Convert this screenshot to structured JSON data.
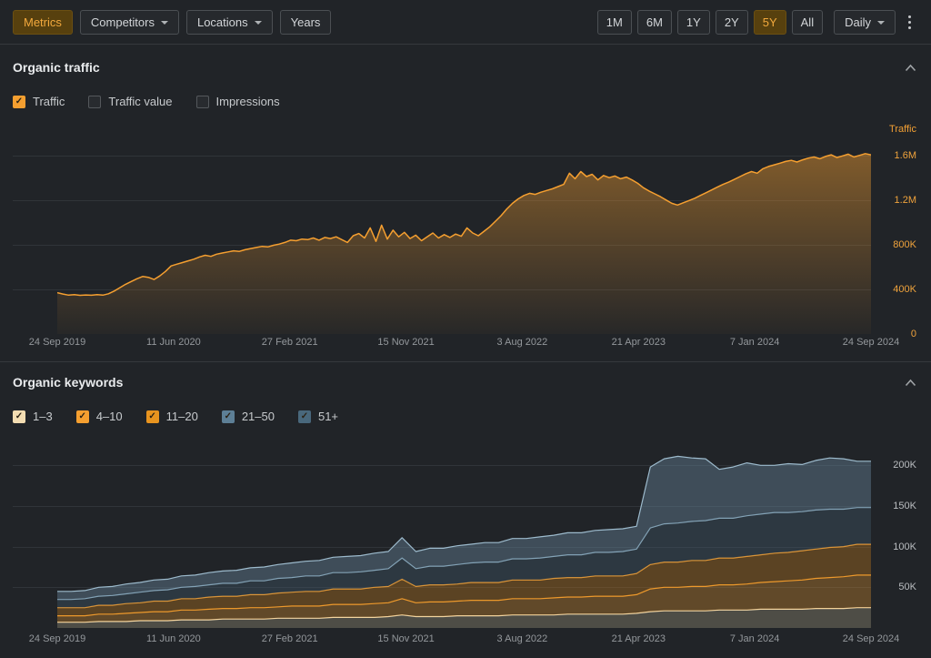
{
  "toolbar": {
    "metrics_label": "Metrics",
    "competitors_label": "Competitors",
    "locations_label": "Locations",
    "years_label": "Years",
    "granularity": "Daily",
    "ranges": [
      {
        "label": "1M",
        "active": false
      },
      {
        "label": "6M",
        "active": false
      },
      {
        "label": "1Y",
        "active": false
      },
      {
        "label": "2Y",
        "active": false
      },
      {
        "label": "5Y",
        "active": true
      },
      {
        "label": "All",
        "active": false
      }
    ],
    "accent_color": "#f3a93d"
  },
  "traffic_section": {
    "title": "Organic traffic",
    "ylabel": "Traffic",
    "legend": [
      {
        "label": "Traffic",
        "checked": true,
        "color": "#f59f30"
      },
      {
        "label": "Traffic value",
        "checked": false,
        "color": ""
      },
      {
        "label": "Impressions",
        "checked": false,
        "color": ""
      }
    ]
  },
  "keywords_section": {
    "title": "Organic keywords",
    "legend": [
      {
        "label": "1–3",
        "checked": true,
        "color": "#f3ddb2"
      },
      {
        "label": "4–10",
        "checked": true,
        "color": "#f59f30"
      },
      {
        "label": "11–20",
        "checked": true,
        "color": "#e8941f"
      },
      {
        "label": "21–50",
        "checked": true,
        "color": "#5d7f96"
      },
      {
        "label": "51+",
        "checked": true,
        "color": "#49687c"
      }
    ]
  },
  "chart_data": [
    {
      "type": "line",
      "title": "Organic traffic",
      "ylabel": "Traffic",
      "unit": "thousands",
      "grid": true,
      "legend_position": "above",
      "x_ticks": [
        "24 Sep 2019",
        "11 Jun 2020",
        "27 Feb 2021",
        "15 Nov 2021",
        "3 Aug 2022",
        "21 Apr 2023",
        "7 Jan 2024",
        "24 Sep 2024"
      ],
      "y_ticks": [
        {
          "label": "1.6M",
          "value": 1600
        },
        {
          "label": "1.2M",
          "value": 1200
        },
        {
          "label": "800K",
          "value": 800
        },
        {
          "label": "400K",
          "value": 400
        },
        {
          "label": "0",
          "value": 0
        }
      ],
      "ylim": [
        0,
        1850
      ],
      "series": [
        {
          "name": "Traffic",
          "color": "#f59f30",
          "fill": true,
          "values": [
            370,
            358,
            348,
            352,
            346,
            350,
            347,
            352,
            348,
            360,
            385,
            415,
            445,
            470,
            495,
            515,
            508,
            488,
            520,
            560,
            610,
            625,
            640,
            655,
            670,
            690,
            705,
            695,
            715,
            725,
            735,
            745,
            740,
            755,
            765,
            775,
            785,
            780,
            795,
            805,
            820,
            840,
            835,
            850,
            845,
            860,
            840,
            865,
            855,
            870,
            845,
            820,
            880,
            900,
            860,
            950,
            830,
            975,
            850,
            930,
            870,
            910,
            855,
            885,
            835,
            870,
            905,
            860,
            890,
            865,
            895,
            875,
            950,
            905,
            880,
            920,
            960,
            1010,
            1060,
            1120,
            1170,
            1210,
            1240,
            1260,
            1250,
            1270,
            1285,
            1300,
            1320,
            1340,
            1440,
            1390,
            1455,
            1410,
            1430,
            1380,
            1420,
            1400,
            1415,
            1390,
            1405,
            1380,
            1350,
            1310,
            1280,
            1255,
            1230,
            1200,
            1170,
            1155,
            1175,
            1195,
            1215,
            1240,
            1265,
            1290,
            1315,
            1340,
            1360,
            1385,
            1410,
            1435,
            1455,
            1440,
            1480,
            1500,
            1515,
            1530,
            1545,
            1555,
            1540,
            1560,
            1575,
            1585,
            1570,
            1590,
            1605,
            1580,
            1595,
            1610,
            1585,
            1600,
            1615,
            1605
          ]
        }
      ]
    },
    {
      "type": "area",
      "stacked": true,
      "title": "Organic keywords",
      "unit": "thousands",
      "grid": true,
      "x_ticks": [
        "24 Sep 2019",
        "11 Jun 2020",
        "27 Feb 2021",
        "15 Nov 2021",
        "3 Aug 2022",
        "21 Apr 2023",
        "7 Jan 2024",
        "24 Sep 2024"
      ],
      "y_ticks": [
        {
          "label": "200K",
          "value": 200
        },
        {
          "label": "150K",
          "value": 150
        },
        {
          "label": "100K",
          "value": 100
        },
        {
          "label": "50K",
          "value": 50
        }
      ],
      "ylim": [
        0,
        235
      ],
      "series": [
        {
          "name": "1–3",
          "line": "#f3ddb2",
          "fill": "rgba(243,221,178,0.22)",
          "values": [
            7,
            7,
            7,
            8,
            8,
            8,
            9,
            9,
            9,
            10,
            10,
            10,
            11,
            11,
            11,
            11,
            12,
            12,
            12,
            12,
            13,
            13,
            13,
            13,
            14,
            16,
            14,
            14,
            14,
            15,
            15,
            15,
            15,
            16,
            16,
            16,
            16,
            17,
            17,
            17,
            17,
            17,
            18,
            20,
            21,
            21,
            21,
            21,
            22,
            22,
            22,
            23,
            23,
            23,
            23,
            24,
            24,
            24,
            25,
            25
          ]
        },
        {
          "name": "4–10",
          "line": "#f59f30",
          "fill": "rgba(245,159,48,0.30)",
          "values": [
            8,
            8,
            8,
            9,
            9,
            10,
            10,
            11,
            11,
            12,
            12,
            13,
            13,
            13,
            14,
            14,
            14,
            15,
            15,
            15,
            16,
            16,
            16,
            17,
            17,
            20,
            17,
            18,
            18,
            18,
            19,
            19,
            19,
            20,
            20,
            20,
            21,
            21,
            21,
            22,
            22,
            22,
            23,
            28,
            29,
            29,
            30,
            30,
            31,
            31,
            32,
            33,
            34,
            35,
            36,
            37,
            38,
            39,
            40,
            40
          ]
        },
        {
          "name": "11–20",
          "line": "#f59f30",
          "fill": "rgba(200,125,25,0.35)",
          "values": [
            10,
            10,
            10,
            11,
            11,
            12,
            12,
            13,
            13,
            14,
            14,
            15,
            15,
            15,
            16,
            16,
            17,
            17,
            18,
            18,
            19,
            19,
            19,
            20,
            20,
            24,
            20,
            21,
            21,
            21,
            22,
            22,
            22,
            23,
            23,
            23,
            24,
            24,
            24,
            25,
            25,
            25,
            26,
            30,
            31,
            31,
            32,
            32,
            33,
            33,
            34,
            34,
            35,
            35,
            36,
            36,
            37,
            37,
            38,
            38
          ]
        },
        {
          "name": "21–50",
          "line": "#8aa9bc",
          "fill": "rgba(70,95,112,0.35)",
          "values": [
            10,
            10,
            11,
            11,
            12,
            12,
            13,
            13,
            14,
            14,
            15,
            15,
            16,
            16,
            17,
            17,
            18,
            18,
            19,
            19,
            20,
            20,
            21,
            21,
            22,
            26,
            22,
            23,
            23,
            24,
            24,
            25,
            25,
            26,
            26,
            27,
            27,
            28,
            28,
            29,
            29,
            30,
            30,
            45,
            47,
            48,
            48,
            49,
            49,
            49,
            50,
            50,
            50,
            49,
            48,
            48,
            47,
            46,
            45,
            45
          ]
        },
        {
          "name": "51+",
          "line": "#9dbbcd",
          "fill": "rgba(105,135,158,0.42)",
          "values": [
            10,
            10,
            10,
            11,
            11,
            12,
            12,
            13,
            13,
            14,
            14,
            15,
            15,
            16,
            16,
            17,
            17,
            18,
            18,
            19,
            19,
            20,
            20,
            21,
            21,
            25,
            21,
            22,
            22,
            23,
            23,
            24,
            24,
            25,
            25,
            26,
            26,
            27,
            27,
            27,
            28,
            28,
            28,
            75,
            80,
            82,
            78,
            76,
            60,
            63,
            65,
            60,
            58,
            60,
            58,
            61,
            63,
            62,
            57,
            57
          ]
        }
      ]
    }
  ]
}
